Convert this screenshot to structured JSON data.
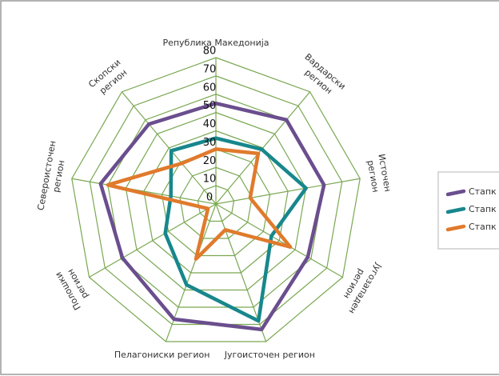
{
  "chart_data": {
    "type": "radar",
    "categories": [
      "Република Македонија",
      "Вардарски регион",
      "Источен регион",
      "Југозападен регион",
      "Југоисточен регион",
      "Пелагониски регион",
      "Полошки регион",
      "Североисточен регион",
      "Скопски регион"
    ],
    "series": [
      {
        "name": "Стапк",
        "color": "#6a4e8e",
        "values": [
          55,
          60,
          60,
          58,
          73,
          67,
          59,
          64,
          57
        ]
      },
      {
        "name": "Стапк",
        "color": "#17878c",
        "values": [
          36,
          39,
          50,
          35,
          68,
          47,
          32,
          25,
          38
        ]
      },
      {
        "name": "Стапк",
        "color": "#e07a2c",
        "values": [
          30,
          36,
          19,
          47,
          15,
          32,
          5,
          60,
          29
        ]
      }
    ],
    "ylim": [
      0,
      80
    ],
    "yticks": [
      0,
      10,
      20,
      30,
      40,
      50,
      60,
      70,
      80
    ],
    "grid": true,
    "grid_color": "#7aa852",
    "legend": "right"
  }
}
